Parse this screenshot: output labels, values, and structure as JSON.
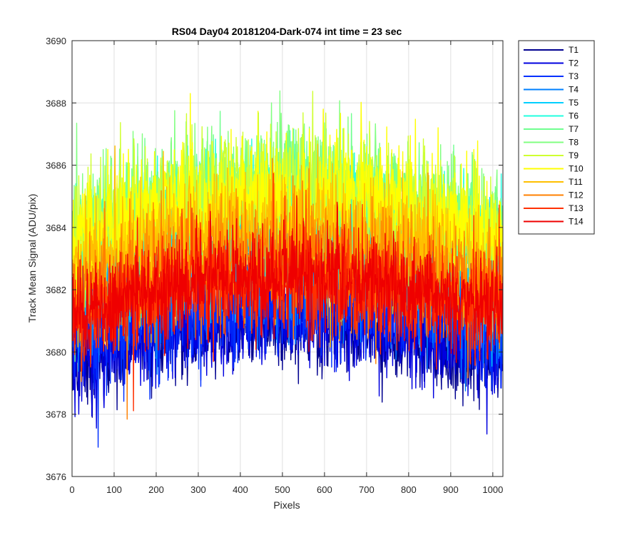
{
  "chart_data": {
    "type": "line",
    "title": "RS04 Day04 20181204-Dark-074 int time = 23 sec",
    "xlabel": "Pixels",
    "ylabel": "Track Mean Signal (ADU/pix)",
    "xlim": [
      0,
      1024
    ],
    "ylim": [
      3676,
      3690
    ],
    "xticks": [
      0,
      100,
      200,
      300,
      400,
      500,
      600,
      700,
      800,
      900,
      1000
    ],
    "yticks": [
      3676,
      3678,
      3680,
      3682,
      3684,
      3686,
      3688,
      3690
    ],
    "grid": true,
    "legend_position": "outside-right-top",
    "n_points": 1024,
    "series": [
      {
        "name": "T1",
        "color": "#00008f",
        "center": 3680.9,
        "edge_drop": 1.3,
        "noise": 0.75
      },
      {
        "name": "T2",
        "color": "#0000df",
        "center": 3681.0,
        "edge_drop": 1.3,
        "noise": 0.75
      },
      {
        "name": "T3",
        "color": "#0030ff",
        "center": 3681.6,
        "edge_drop": 1.2,
        "noise": 0.8
      },
      {
        "name": "T4",
        "color": "#0080ff",
        "center": 3682.6,
        "edge_drop": 1.2,
        "noise": 0.85
      },
      {
        "name": "T5",
        "color": "#00cfff",
        "center": 3683.6,
        "edge_drop": 1.3,
        "noise": 0.9
      },
      {
        "name": "T6",
        "color": "#20ffdf",
        "center": 3684.6,
        "edge_drop": 1.4,
        "noise": 0.95
      },
      {
        "name": "T7",
        "color": "#70ff8f",
        "center": 3685.0,
        "edge_drop": 1.5,
        "noise": 0.95
      },
      {
        "name": "T8",
        "color": "#80ff80",
        "center": 3685.4,
        "edge_drop": 1.6,
        "noise": 0.95
      },
      {
        "name": "T9",
        "color": "#cfff30",
        "center": 3685.1,
        "edge_drop": 1.6,
        "noise": 0.95
      },
      {
        "name": "T10",
        "color": "#ffff00",
        "center": 3685.0,
        "edge_drop": 1.6,
        "noise": 1.0
      },
      {
        "name": "T11",
        "color": "#ffbf00",
        "center": 3684.0,
        "edge_drop": 1.5,
        "noise": 0.95
      },
      {
        "name": "T12",
        "color": "#ff8000",
        "center": 3683.0,
        "edge_drop": 1.3,
        "noise": 0.9
      },
      {
        "name": "T13",
        "color": "#ff3000",
        "center": 3682.3,
        "edge_drop": 1.1,
        "noise": 0.85
      },
      {
        "name": "T14",
        "color": "#ef0000",
        "center": 3682.4,
        "edge_drop": 1.1,
        "noise": 0.8
      }
    ]
  }
}
